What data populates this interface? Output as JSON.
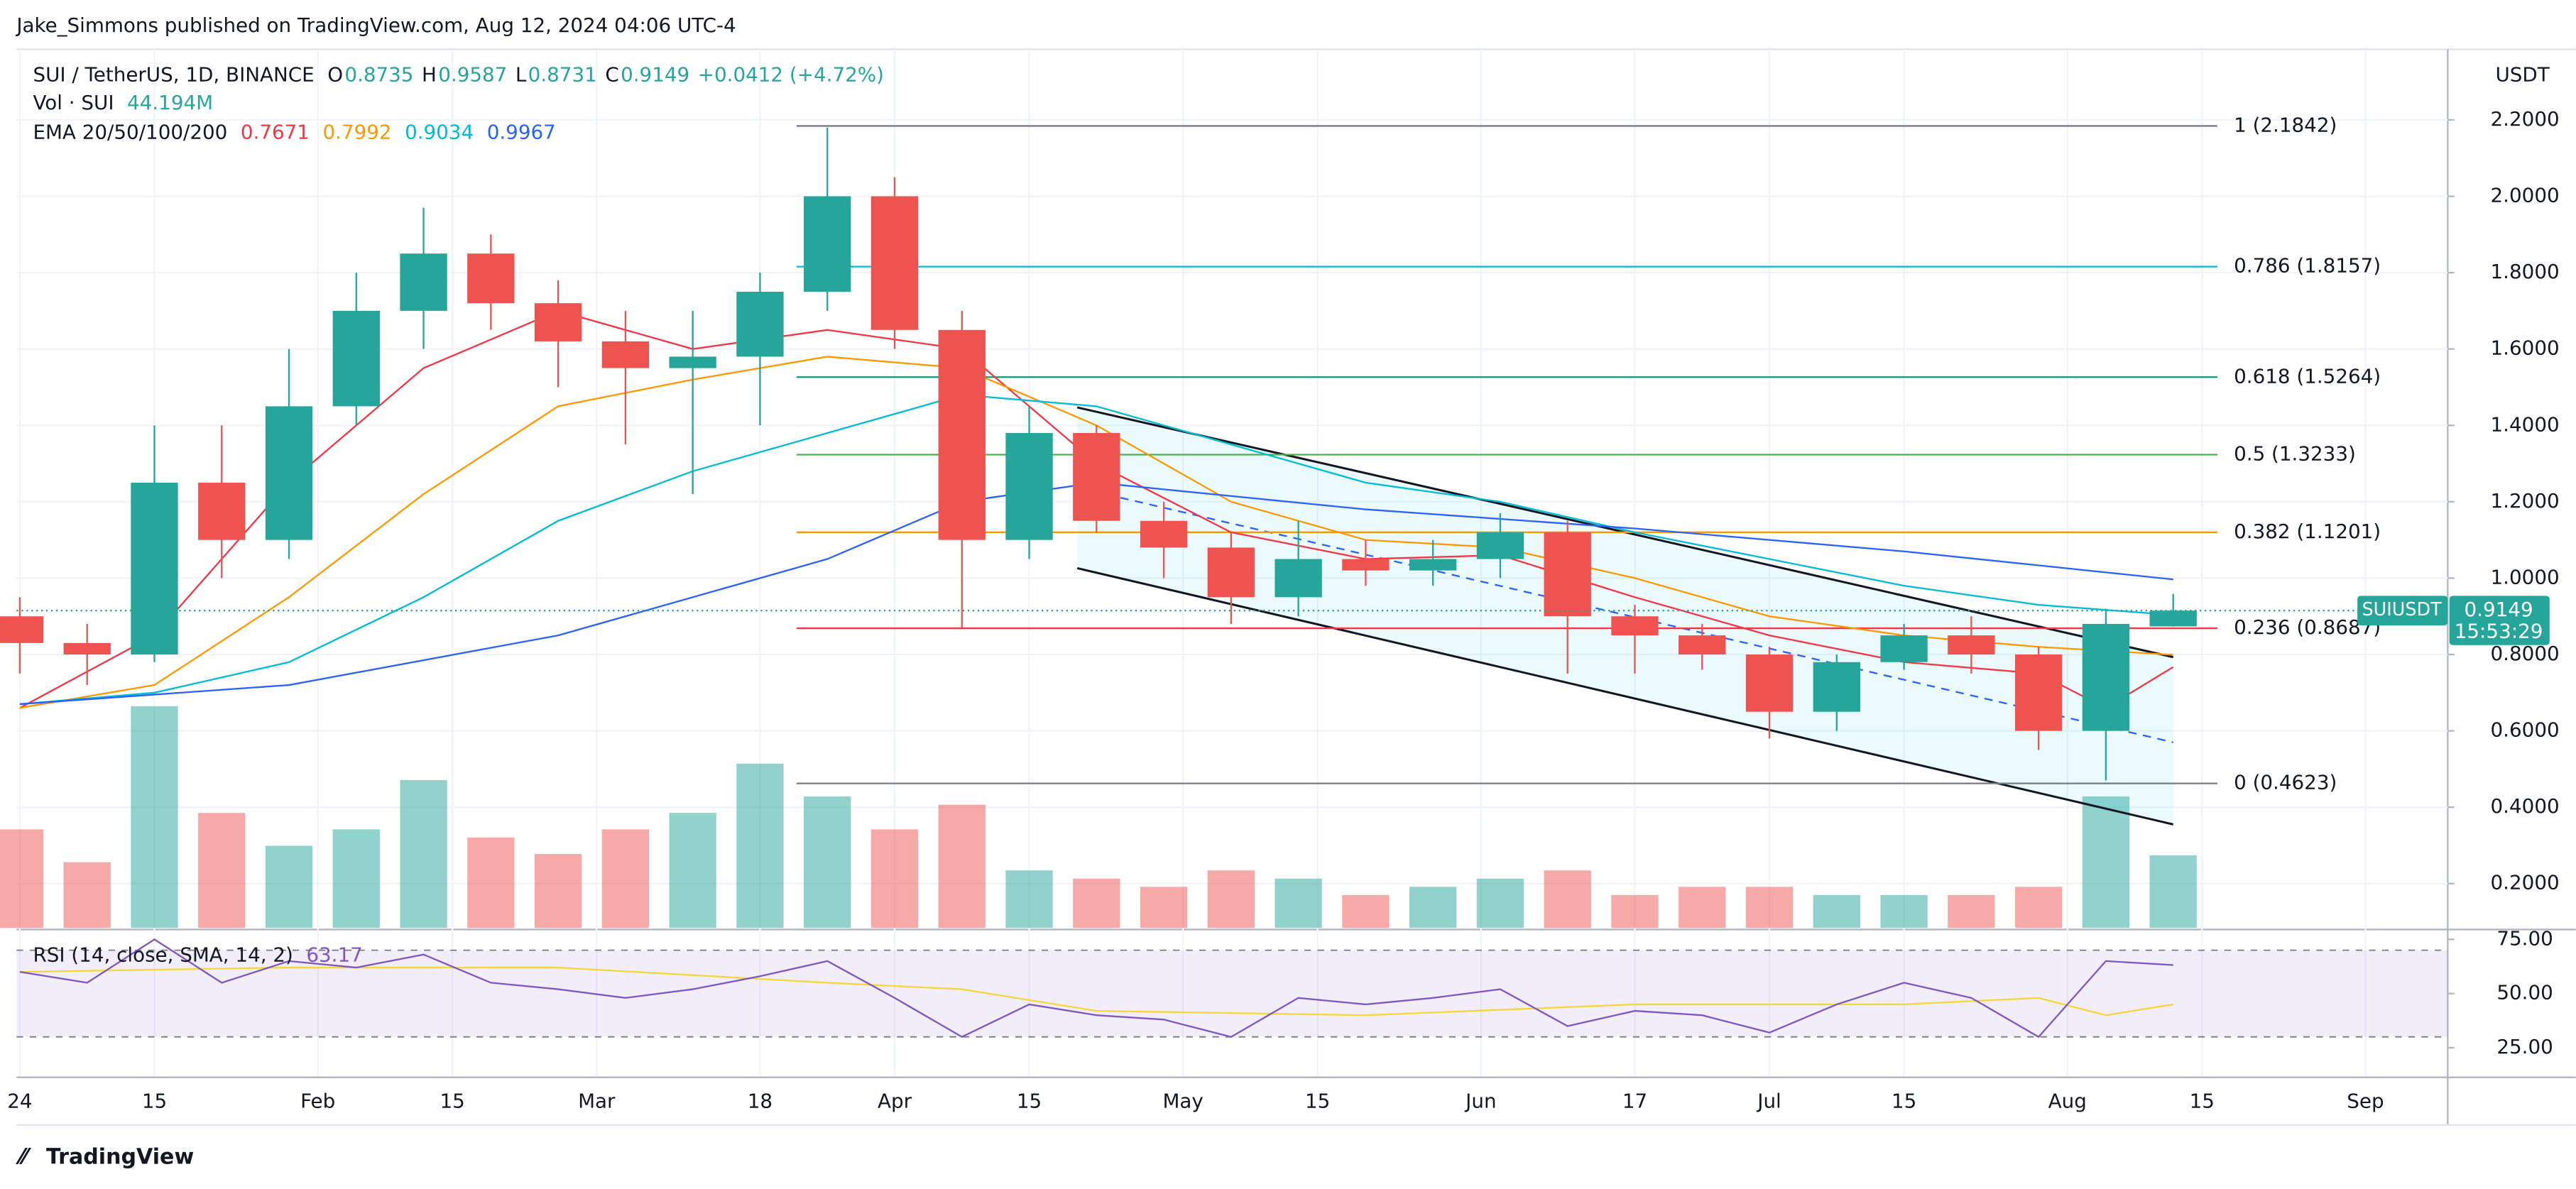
{
  "header": "Jake_Simmons published on TradingView.com, Aug 12, 2024 04:06 UTC-4",
  "brand": "TradingView",
  "chart_data": {
    "type": "candlestick",
    "title": "SUI / TetherUS, 1D, BINANCE",
    "ohlc_legend": [
      {
        "label": "O",
        "value": 0.8735
      },
      {
        "label": "H",
        "value": 0.9587
      },
      {
        "label": "L",
        "value": 0.8731
      },
      {
        "label": "C",
        "value": 0.9149
      }
    ],
    "change": "+0.0412 (+4.72%)",
    "volume_legend": {
      "label": "Vol · SUI",
      "value": "44.194M"
    },
    "ema_legend": "EMA 20/50/100/200",
    "currency": "USDT",
    "symbol": "SUIUSDT",
    "last_price": 0.9149,
    "countdown": "15:53:29",
    "x": [
      0,
      7,
      14,
      21,
      28,
      35,
      42,
      49,
      56,
      63,
      70,
      77,
      84,
      91,
      98,
      105,
      112,
      119,
      126,
      133,
      140,
      147,
      154,
      161,
      168,
      175,
      182,
      189,
      196,
      203,
      210,
      217,
      224
    ],
    "open": [
      0.9,
      0.83,
      0.8,
      1.25,
      1.1,
      1.45,
      1.7,
      1.85,
      1.72,
      1.62,
      1.55,
      1.58,
      1.75,
      2.0,
      1.65,
      1.1,
      1.38,
      1.15,
      1.08,
      0.95,
      1.05,
      1.02,
      1.05,
      1.12,
      0.9,
      0.85,
      0.8,
      0.65,
      0.78,
      0.85,
      0.8,
      0.6,
      0.8735
    ],
    "high": [
      0.95,
      0.88,
      1.4,
      1.4,
      1.6,
      1.8,
      1.97,
      1.9,
      1.78,
      1.7,
      1.7,
      1.8,
      2.18,
      2.05,
      1.7,
      1.45,
      1.4,
      1.2,
      1.12,
      1.15,
      1.1,
      1.1,
      1.17,
      1.15,
      0.93,
      0.88,
      0.82,
      0.8,
      0.88,
      0.9,
      0.82,
      0.92,
      0.9587
    ],
    "low": [
      0.75,
      0.72,
      0.78,
      1.0,
      1.05,
      1.4,
      1.6,
      1.65,
      1.5,
      1.35,
      1.22,
      1.4,
      1.7,
      1.6,
      0.87,
      1.05,
      1.12,
      1.0,
      0.88,
      0.9,
      0.98,
      0.98,
      1.0,
      0.75,
      0.75,
      0.76,
      0.58,
      0.6,
      0.76,
      0.75,
      0.55,
      0.47,
      0.8731
    ],
    "close": [
      0.83,
      0.8,
      1.25,
      1.1,
      1.45,
      1.7,
      1.85,
      1.72,
      1.62,
      1.55,
      1.58,
      1.75,
      2.0,
      1.65,
      1.1,
      1.38,
      1.15,
      1.08,
      0.95,
      1.05,
      1.02,
      1.05,
      1.12,
      0.9,
      0.85,
      0.8,
      0.65,
      0.78,
      0.85,
      0.8,
      0.6,
      0.88,
      0.9149
    ],
    "up_color": "#26a69a",
    "down_color": "#ef5350",
    "volume": [
      60,
      40,
      135,
      70,
      50,
      60,
      90,
      55,
      45,
      60,
      70,
      100,
      80,
      60,
      75,
      35,
      30,
      25,
      35,
      30,
      20,
      25,
      30,
      35,
      20,
      25,
      25,
      20,
      20,
      20,
      25,
      80,
      44.194
    ],
    "vlim": [
      0,
      150
    ],
    "series": [
      {
        "name": "EMA 20",
        "color": "#f23645",
        "legend_value": 0.7671,
        "x": [
          0,
          14,
          28,
          42,
          56,
          70,
          84,
          98,
          112,
          126,
          140,
          154,
          168,
          182,
          196,
          210,
          217,
          224
        ],
        "values": [
          0.66,
          0.85,
          1.25,
          1.55,
          1.7,
          1.6,
          1.65,
          1.6,
          1.3,
          1.12,
          1.05,
          1.06,
          0.95,
          0.85,
          0.78,
          0.75,
          0.66,
          0.7671
        ]
      },
      {
        "name": "EMA 50",
        "color": "#ff9800",
        "legend_value": 0.7992,
        "x": [
          0,
          14,
          28,
          42,
          56,
          70,
          84,
          98,
          112,
          126,
          140,
          154,
          168,
          182,
          196,
          210,
          224
        ],
        "values": [
          0.66,
          0.72,
          0.95,
          1.22,
          1.45,
          1.52,
          1.58,
          1.55,
          1.4,
          1.2,
          1.1,
          1.08,
          1.0,
          0.9,
          0.85,
          0.82,
          0.7992
        ]
      },
      {
        "name": "EMA 100",
        "color": "#00bcd4",
        "legend_value": 0.9034,
        "x": [
          0,
          14,
          28,
          42,
          56,
          70,
          84,
          98,
          112,
          126,
          140,
          154,
          168,
          182,
          196,
          210,
          224
        ],
        "values": [
          0.67,
          0.7,
          0.78,
          0.95,
          1.15,
          1.28,
          1.38,
          1.48,
          1.45,
          1.35,
          1.25,
          1.2,
          1.12,
          1.05,
          0.98,
          0.93,
          0.9034
        ]
      },
      {
        "name": "EMA 200",
        "color": "#2962ff",
        "legend_value": 0.9967,
        "x": [
          0,
          28,
          56,
          84,
          98,
          112,
          140,
          168,
          196,
          224
        ],
        "values": [
          0.67,
          0.72,
          0.85,
          1.05,
          1.2,
          1.25,
          1.18,
          1.13,
          1.07,
          0.9967
        ]
      }
    ],
    "fib": {
      "x": [
        80.8,
        228.6
      ],
      "levels": [
        {
          "label": "1 (2.1842)",
          "value": 2.1842,
          "color": "#787b86"
        },
        {
          "label": "0.786 (1.8157)",
          "value": 1.8157,
          "color": "#00bcd4"
        },
        {
          "label": "0.618 (1.5264)",
          "value": 1.5264,
          "color": "#089981"
        },
        {
          "label": "0.5 (1.3233)",
          "value": 1.3233,
          "color": "#4caf50"
        },
        {
          "label": "0.382 (1.1201)",
          "value": 1.1201,
          "color": "#ff9800"
        },
        {
          "label": "0.236 (0.8687)",
          "value": 0.8687,
          "color": "#f23645"
        },
        {
          "label": "0 (0.4623)",
          "value": 0.4623,
          "color": "#787b86"
        }
      ]
    },
    "channel": {
      "x": [
        110,
        224
      ],
      "upper": [
        1.447,
        0.793
      ],
      "middle": [
        1.237,
        0.57
      ],
      "lower": [
        1.026,
        0.355
      ]
    },
    "xlim": [
      -0.34,
      252.56
    ],
    "xticks": [
      {
        "value": 0,
        "label": "24"
      },
      {
        "value": 14,
        "label": "15"
      },
      {
        "value": 31,
        "label": "Feb"
      },
      {
        "value": 45,
        "label": "15"
      },
      {
        "value": 60,
        "label": "Mar"
      },
      {
        "value": 77,
        "label": "18"
      },
      {
        "value": 91,
        "label": "Apr"
      },
      {
        "value": 105,
        "label": "15"
      },
      {
        "value": 121,
        "label": "May"
      },
      {
        "value": 135,
        "label": "15"
      },
      {
        "value": 152,
        "label": "Jun"
      },
      {
        "value": 168,
        "label": "17"
      },
      {
        "value": 182,
        "label": "Jul"
      },
      {
        "value": 196,
        "label": "15"
      },
      {
        "value": 213,
        "label": "Aug"
      },
      {
        "value": 227,
        "label": "15"
      },
      {
        "value": 244,
        "label": "Sep"
      }
    ],
    "ylim": [
      0.084,
      2.385
    ],
    "yticks": [
      {
        "value": 0.2,
        "label": "0.2000"
      },
      {
        "value": 0.4,
        "label": "0.4000"
      },
      {
        "value": 0.6,
        "label": "0.6000"
      },
      {
        "value": 0.8,
        "label": "0.8000"
      },
      {
        "value": 1.0,
        "label": "1.0000"
      },
      {
        "value": 1.2,
        "label": "1.2000"
      },
      {
        "value": 1.4,
        "label": "1.4000"
      },
      {
        "value": 1.6,
        "label": "1.6000"
      },
      {
        "value": 1.8,
        "label": "1.8000"
      },
      {
        "value": 2.0,
        "label": "2.0000"
      },
      {
        "value": 2.2,
        "label": "2.2000"
      }
    ],
    "grid": true,
    "rsi": {
      "title": "RSI (14, close, SMA, 14, 2)",
      "legend_value": 63.17,
      "color": "#7e57c2",
      "sma_color": "#f7d63a",
      "x": [
        0,
        7,
        14,
        21,
        28,
        35,
        42,
        49,
        56,
        63,
        70,
        77,
        84,
        91,
        98,
        105,
        112,
        119,
        126,
        133,
        140,
        147,
        154,
        161,
        168,
        175,
        182,
        189,
        196,
        203,
        210,
        217,
        224
      ],
      "values": [
        60,
        55,
        75,
        55,
        65,
        62,
        68,
        55,
        52,
        48,
        52,
        58,
        65,
        48,
        30,
        45,
        40,
        38,
        30,
        48,
        45,
        48,
        52,
        35,
        42,
        40,
        32,
        45,
        55,
        48,
        30,
        65,
        63.17
      ],
      "sma_x": [
        0,
        28,
        56,
        84,
        98,
        112,
        140,
        168,
        196,
        210,
        217,
        224
      ],
      "sma": [
        60,
        62,
        62,
        55,
        52,
        42,
        40,
        45,
        45,
        48,
        40,
        45
      ],
      "band": [
        30,
        70
      ],
      "ylim": [
        12.1,
        78.8
      ],
      "yticks": [
        {
          "value": 25,
          "label": "25.00"
        },
        {
          "value": 50,
          "label": "50.00"
        },
        {
          "value": 75,
          "label": "75.00"
        }
      ]
    }
  }
}
